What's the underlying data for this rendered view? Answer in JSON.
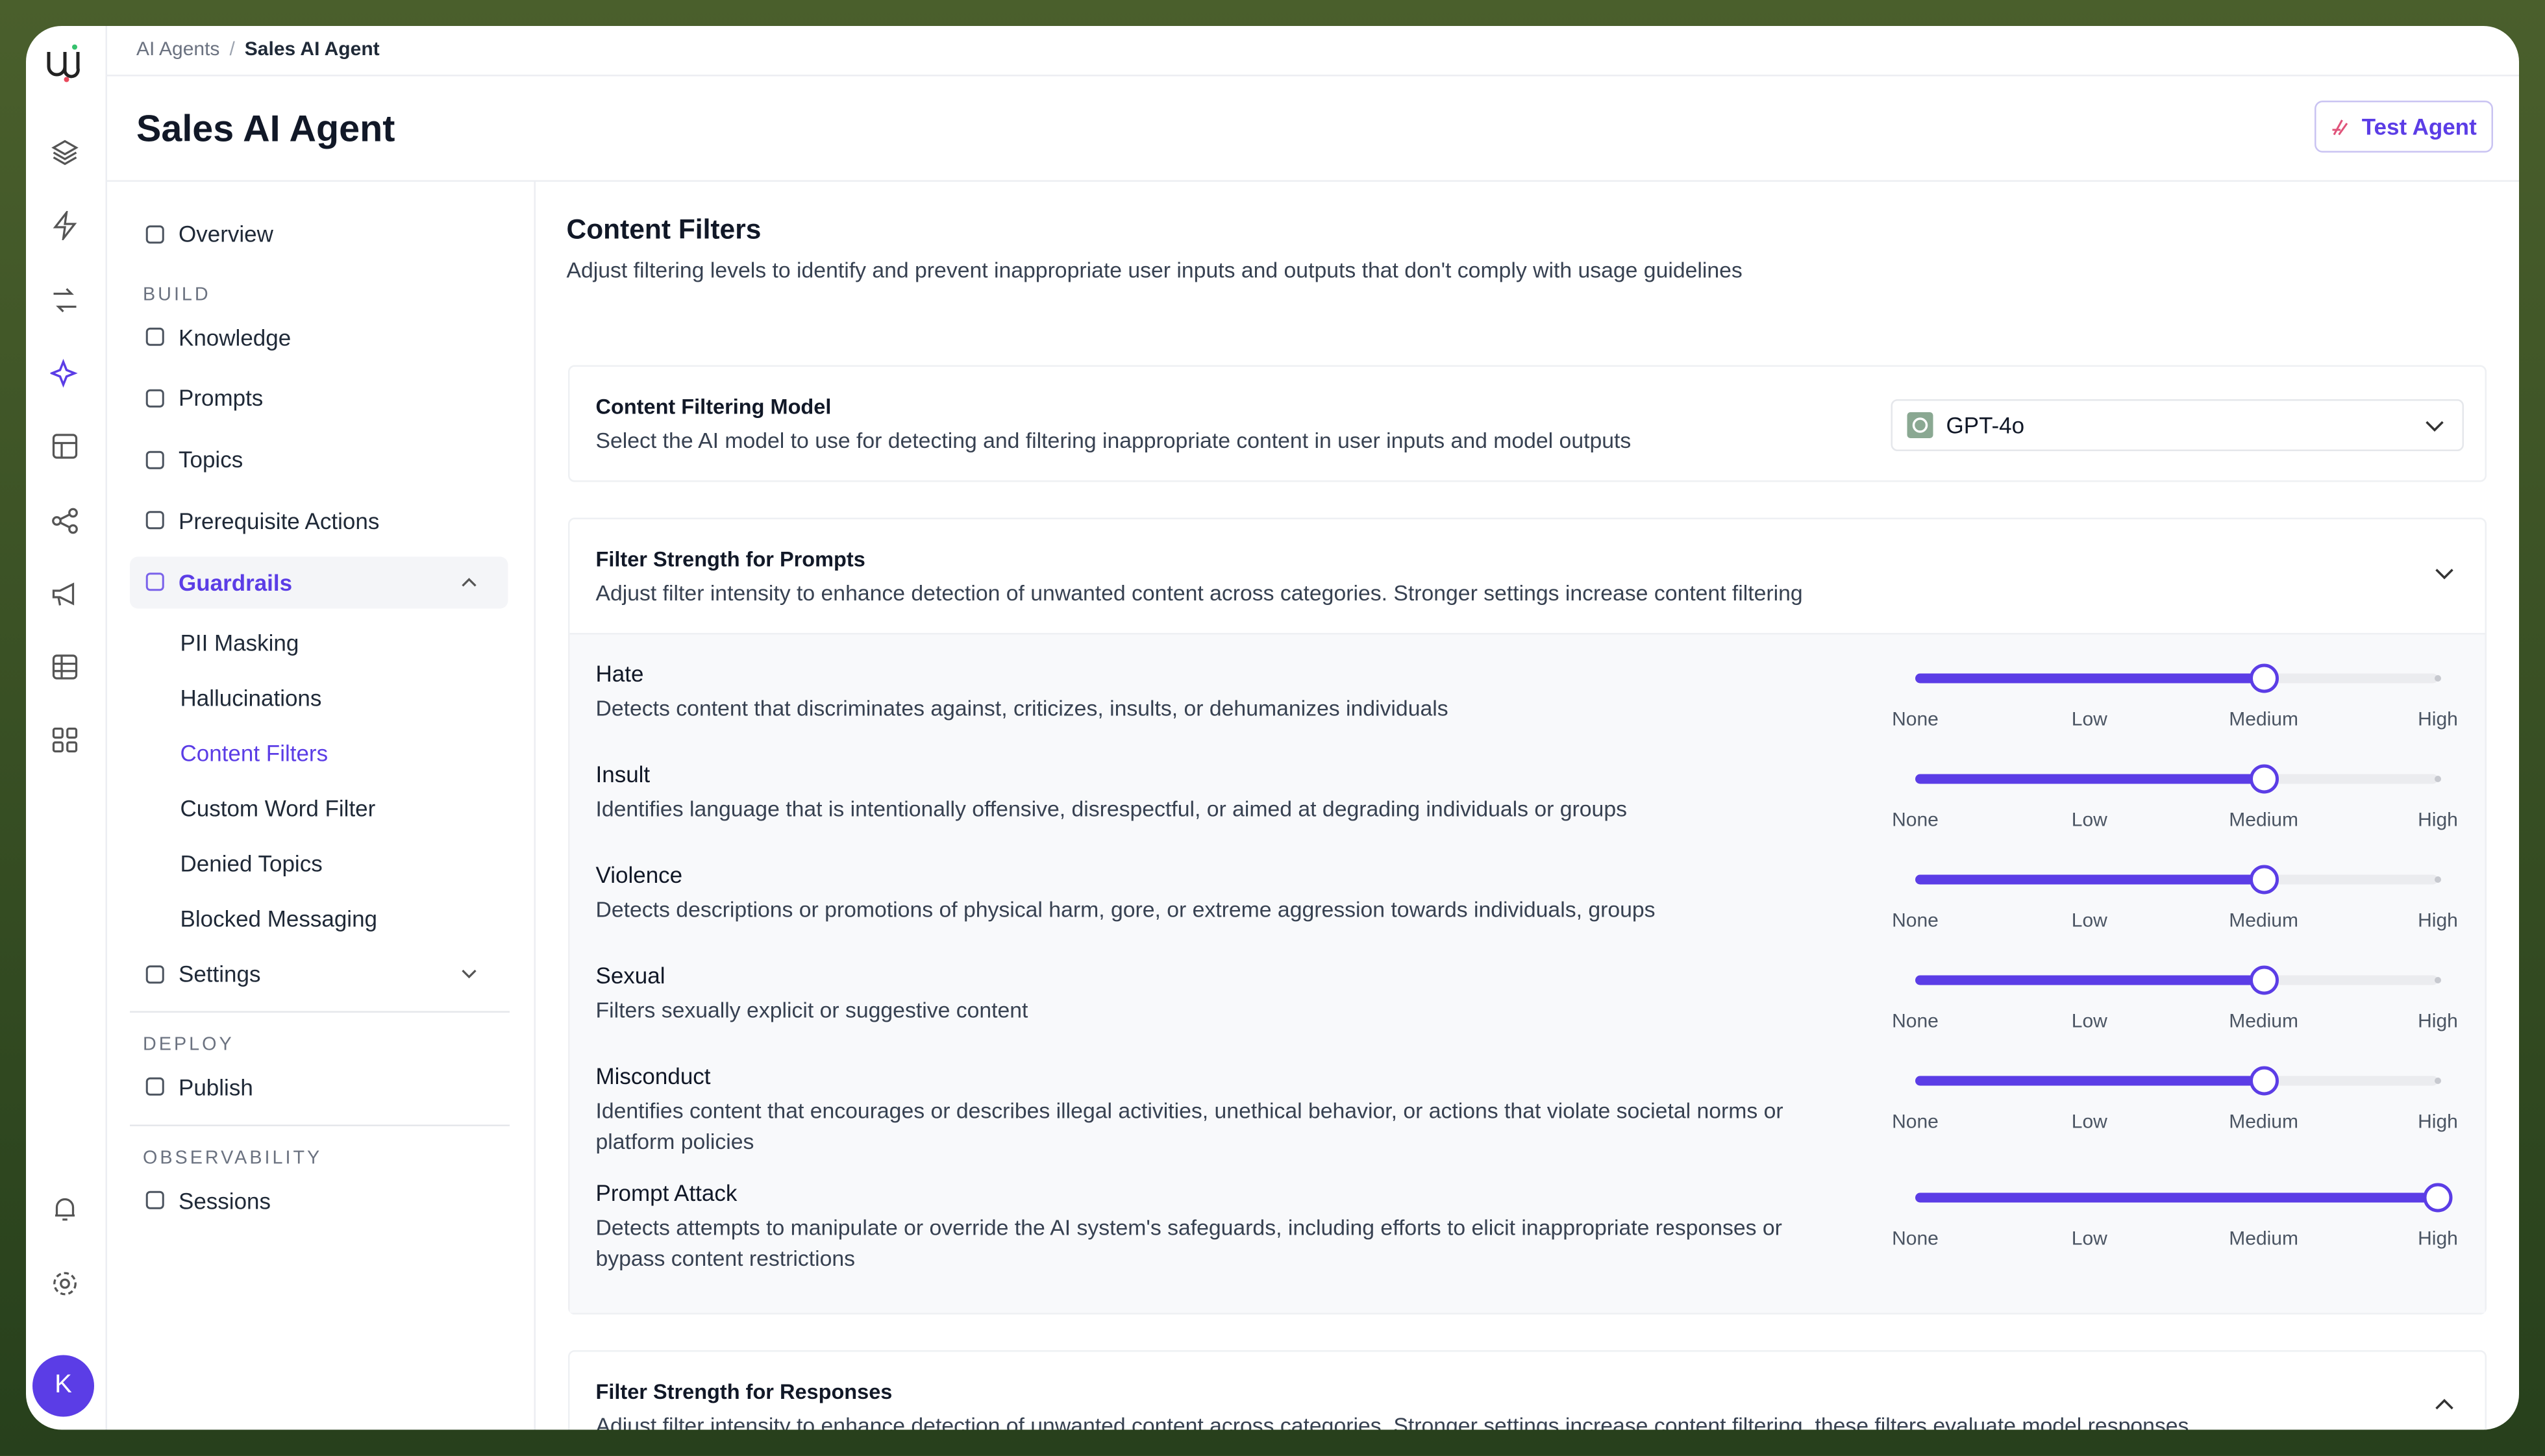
{
  "breadcrumb": [
    "AI Agents",
    "Sales AI Agent"
  ],
  "header": {
    "title": "Sales AI Agent",
    "button": "Test Agent"
  },
  "avatar": "K",
  "sidebar": {
    "items": [
      {
        "label": "Overview",
        "kind": "item"
      },
      {
        "label": "BUILD",
        "kind": "heading"
      },
      {
        "label": "Knowledge",
        "kind": "item"
      },
      {
        "label": "Prompts",
        "kind": "item"
      },
      {
        "label": "Topics",
        "kind": "item"
      },
      {
        "label": "Prerequisite Actions",
        "kind": "item"
      },
      {
        "label": "Guardrails",
        "kind": "item",
        "active": true,
        "expanded": true
      },
      {
        "label": "PII Masking",
        "kind": "subitem"
      },
      {
        "label": "Hallucinations",
        "kind": "subitem"
      },
      {
        "label": "Content Filters",
        "kind": "subitem",
        "active": true
      },
      {
        "label": "Custom Word Filter",
        "kind": "subitem"
      },
      {
        "label": "Denied Topics",
        "kind": "subitem"
      },
      {
        "label": "Blocked Messaging",
        "kind": "subitem"
      },
      {
        "label": "Settings",
        "kind": "item",
        "expanded": false
      },
      {
        "label": "DEPLOY",
        "kind": "heading"
      },
      {
        "label": "Publish",
        "kind": "item"
      },
      {
        "label": "OBSERVABILITY",
        "kind": "heading"
      },
      {
        "label": "Sessions",
        "kind": "item"
      }
    ]
  },
  "content": {
    "title": "Content Filters",
    "description": "Adjust filtering levels to identify and prevent inappropriate user inputs and outputs that don't comply with usage guidelines",
    "model": {
      "title": "Content Filtering Model",
      "description": "Select the AI model to use for detecting and filtering inappropriate content in user inputs and model outputs",
      "selected": "GPT-4o"
    },
    "levels": [
      "None",
      "Low",
      "Medium",
      "High"
    ],
    "prompts": {
      "title": "Filter Strength for Prompts",
      "description": "Adjust filter intensity to enhance detection of unwanted content across categories. Stronger settings increase content filtering",
      "filters": [
        {
          "name": "Hate",
          "description": "Detects content that discriminates against, criticizes, insults, or dehumanizes individuals",
          "level": 2
        },
        {
          "name": "Insult",
          "description": "Identifies language that is intentionally offensive, disrespectful, or aimed at degrading individuals or groups",
          "level": 2
        },
        {
          "name": "Violence",
          "description": "Detects descriptions or promotions of physical harm, gore, or extreme aggression towards individuals, groups",
          "level": 2
        },
        {
          "name": "Sexual",
          "description": "Filters sexually explicit or suggestive content",
          "level": 2
        },
        {
          "name": "Misconduct",
          "description": "Identifies content that encourages or describes illegal activities, unethical behavior, or actions that violate societal norms or platform policies",
          "level": 2
        },
        {
          "name": "Prompt Attack",
          "description": "Detects attempts to manipulate or override the AI system's safeguards, including efforts to elicit inappropriate responses or bypass content restrictions",
          "level": 3
        }
      ]
    },
    "responses": {
      "title": "Filter Strength for Responses",
      "description": "Adjust filter intensity to enhance detection of unwanted content across categories. Stronger settings increase content filtering, these filters evaluate model responses"
    }
  }
}
